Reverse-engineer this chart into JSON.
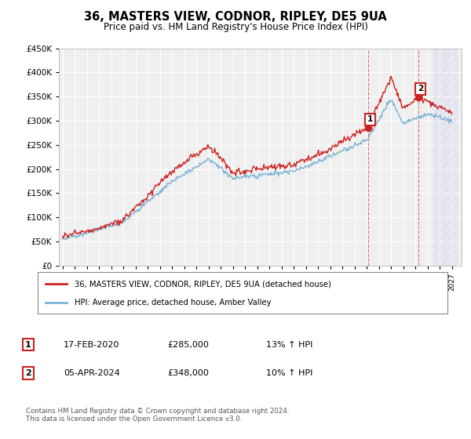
{
  "title": "36, MASTERS VIEW, CODNOR, RIPLEY, DE5 9UA",
  "subtitle": "Price paid vs. HM Land Registry's House Price Index (HPI)",
  "legend_line1": "36, MASTERS VIEW, CODNOR, RIPLEY, DE5 9UA (detached house)",
  "legend_line2": "HPI: Average price, detached house, Amber Valley",
  "annotation1_date": "17-FEB-2020",
  "annotation1_price": "£285,000",
  "annotation1_hpi": "13% ↑ HPI",
  "annotation2_date": "05-APR-2024",
  "annotation2_price": "£348,000",
  "annotation2_hpi": "10% ↑ HPI",
  "footer": "Contains HM Land Registry data © Crown copyright and database right 2024.\nThis data is licensed under the Open Government Licence v3.0.",
  "ylim": [
    0,
    450000
  ],
  "yticks": [
    0,
    50000,
    100000,
    150000,
    200000,
    250000,
    300000,
    350000,
    400000,
    450000
  ],
  "hpi_color": "#7ab3d4",
  "price_color": "#cc2222",
  "sale1_x": 2020.12,
  "sale1_y": 285000,
  "sale2_x": 2024.27,
  "sale2_y": 348000,
  "vline1_x": 2020.12,
  "vline2_x": 2024.27,
  "hatch_start": 2025.5,
  "hatch_end": 2027.5,
  "background_color": "#ffffff",
  "plot_bg_color": "#efefef",
  "grid_color": "#ffffff",
  "xlim_min": 1994.7,
  "xlim_max": 2027.8
}
